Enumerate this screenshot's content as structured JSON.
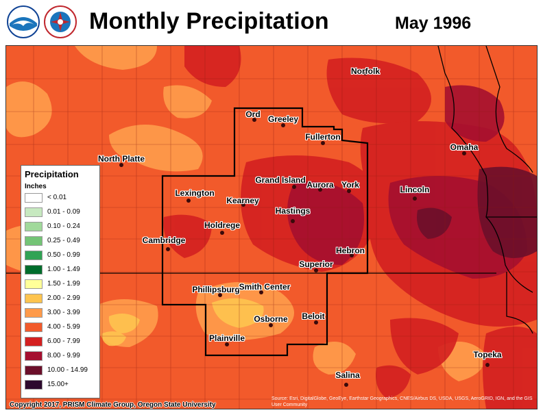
{
  "header": {
    "title": "Monthly Precipitation",
    "date": "May 1996",
    "logos": [
      {
        "name": "NOAA",
        "icon": "noaa-logo"
      },
      {
        "name": "National Weather Service",
        "icon": "nws-logo"
      }
    ]
  },
  "map": {
    "cities": [
      {
        "name": "Norfolk"
      },
      {
        "name": "Ord"
      },
      {
        "name": "Greeley"
      },
      {
        "name": "Fullerton"
      },
      {
        "name": "North Platte"
      },
      {
        "name": "Omaha"
      },
      {
        "name": "Lexington"
      },
      {
        "name": "Grand Island"
      },
      {
        "name": "Aurora"
      },
      {
        "name": "York"
      },
      {
        "name": "Lincoln"
      },
      {
        "name": "Kearney"
      },
      {
        "name": "Hastings"
      },
      {
        "name": "Holdrege"
      },
      {
        "name": "Cambridge"
      },
      {
        "name": "Hebron"
      },
      {
        "name": "Superior"
      },
      {
        "name": "Phillipsburg"
      },
      {
        "name": "Smith Center"
      },
      {
        "name": "Osborne"
      },
      {
        "name": "Beloit"
      },
      {
        "name": "Plainville"
      },
      {
        "name": "Topeka"
      },
      {
        "name": "Salina"
      }
    ]
  },
  "legend": {
    "title": "Precipitation",
    "units": "Inches",
    "items": [
      {
        "label": "< 0.01",
        "color": "#ffffff"
      },
      {
        "label": "0.01 - 0.09",
        "color": "#c7e9c0"
      },
      {
        "label": "0.10 - 0.24",
        "color": "#a1d99b"
      },
      {
        "label": "0.25 - 0.49",
        "color": "#74c476"
      },
      {
        "label": "0.50 - 0.99",
        "color": "#31a354"
      },
      {
        "label": "1.00 - 1.49",
        "color": "#006d2c"
      },
      {
        "label": "1.50 - 1.99",
        "color": "#ffff99"
      },
      {
        "label": "2.00 - 2.99",
        "color": "#fec44f"
      },
      {
        "label": "3.00 - 3.99",
        "color": "#fe9a4a"
      },
      {
        "label": "4.00 - 5.99",
        "color": "#f25a2b"
      },
      {
        "label": "6.00 - 7.99",
        "color": "#d42020"
      },
      {
        "label": "8.00 - 9.99",
        "color": "#a50f2f"
      },
      {
        "label": "10.00 - 14.99",
        "color": "#6b0f2a"
      },
      {
        "label": "15.00+",
        "color": "#2d0a2e"
      }
    ]
  },
  "footer": {
    "copyright": "Copyright 2017, PRISM Climate Group, Oregon State University",
    "source": "Source: Esri, DigitalGlobe, GeoEye, Earthstar Geographics, CNES/Airbus DS, USDA, USGS, AeroGRID, IGN, and the GIS User Community"
  }
}
